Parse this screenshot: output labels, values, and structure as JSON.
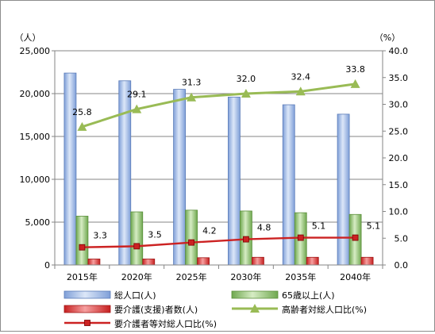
{
  "chart_data": {
    "type": "bar",
    "categories": [
      "2015年",
      "2020年",
      "2025年",
      "2030年",
      "2035年",
      "2040年"
    ],
    "y_left": {
      "unit": "（人）",
      "ylim": [
        0,
        25000
      ],
      "ticks": [
        0,
        5000,
        10000,
        15000,
        20000,
        25000
      ],
      "tick_labels": [
        "0",
        "5,000",
        "10,000",
        "15,000",
        "20,000",
        "25,000"
      ]
    },
    "y_right": {
      "unit": "（%）",
      "ylim": [
        0,
        40
      ],
      "ticks": [
        0,
        5,
        10,
        15,
        20,
        25,
        30,
        35,
        40
      ],
      "tick_labels": [
        "0.0",
        "5.0",
        "10.0",
        "15.0",
        "20.0",
        "25.0",
        "30.0",
        "35.0",
        "40.0"
      ]
    },
    "grid": "horizontal, left axis",
    "legend_position": "bottom",
    "series": [
      {
        "name": "総人口(人)",
        "type": "bar",
        "axis": "left",
        "color": "#aec6ee",
        "values": [
          22400,
          21500,
          20500,
          19600,
          18700,
          17600
        ]
      },
      {
        "name": "65歳以上(人)",
        "type": "bar",
        "axis": "left",
        "color": "#a8d18a",
        "values": [
          5700,
          6200,
          6400,
          6300,
          6100,
          5900
        ]
      },
      {
        "name": "要介護(支援)者数(人)",
        "type": "bar",
        "axis": "left",
        "color": "#e0403f",
        "values": [
          700,
          700,
          850,
          900,
          900,
          900
        ]
      },
      {
        "name": "高齢者対総人口比(%)",
        "type": "line",
        "axis": "right",
        "color": "#99bb55",
        "marker": "triangle",
        "values": [
          25.8,
          29.1,
          31.3,
          32.0,
          32.4,
          33.8
        ],
        "labels": [
          "25.8",
          "29.1",
          "31.3",
          "32.0",
          "32.4",
          "33.8"
        ]
      },
      {
        "name": "要介護者等対総人口比(%)",
        "type": "line",
        "axis": "right",
        "color": "#cc2222",
        "marker": "square",
        "values": [
          3.3,
          3.5,
          4.2,
          4.8,
          5.1,
          5.1
        ],
        "labels": [
          "3.3",
          "3.5",
          "4.2",
          "4.8",
          "5.1",
          "5.1"
        ]
      }
    ]
  }
}
